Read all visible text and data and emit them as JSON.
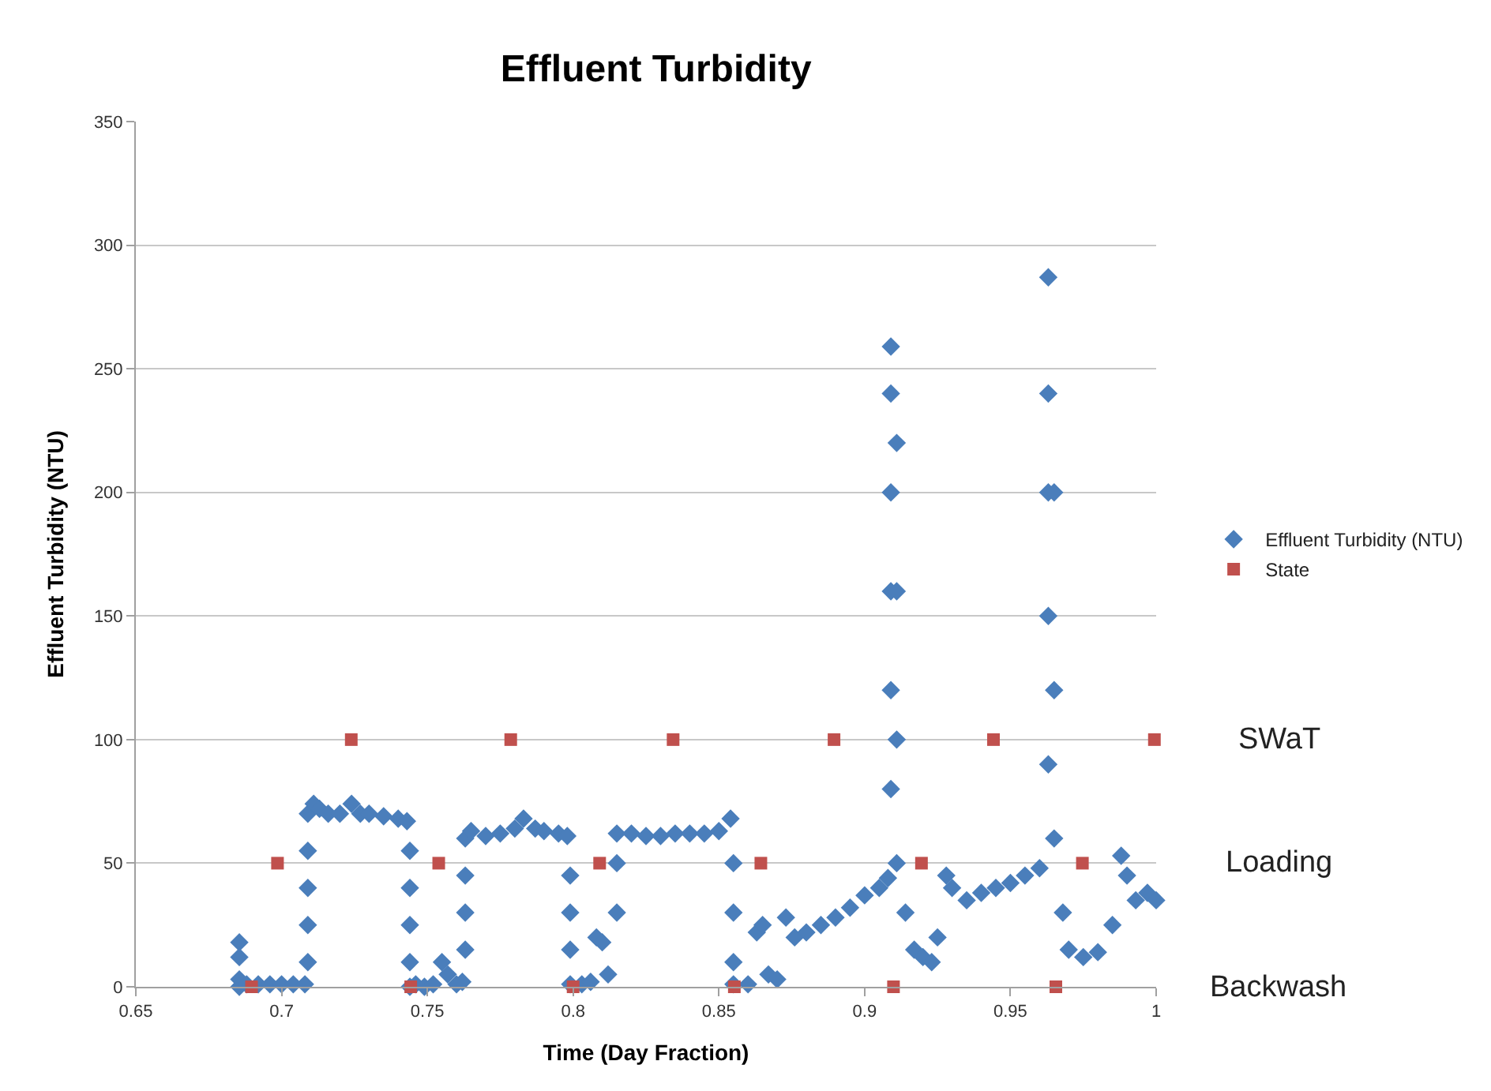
{
  "chart_data": {
    "type": "scatter",
    "title": "Effluent Turbidity",
    "xlabel": "Time (Day Fraction)",
    "ylabel": "Effluent Turbidity (NTU)",
    "xlim": [
      0.65,
      1
    ],
    "xticks": [
      0.65,
      0.7,
      0.75,
      0.8,
      0.85,
      0.9,
      0.95,
      1
    ],
    "ylim": [
      0,
      350
    ],
    "yticks": [
      0,
      50,
      100,
      150,
      200,
      250,
      300,
      350
    ],
    "grid": "y",
    "legend": "right",
    "series": [
      {
        "name": "Effluent Turbidity (NTU)",
        "color": "#4a7ebb",
        "marker": "diamond",
        "x": [
          0.6855,
          0.6855,
          0.6855,
          0.6855,
          0.688,
          0.692,
          0.696,
          0.7,
          0.704,
          0.708,
          0.709,
          0.709,
          0.709,
          0.709,
          0.709,
          0.711,
          0.713,
          0.716,
          0.72,
          0.724,
          0.727,
          0.73,
          0.735,
          0.74,
          0.743,
          0.744,
          0.744,
          0.744,
          0.744,
          0.744,
          0.746,
          0.749,
          0.752,
          0.755,
          0.757,
          0.76,
          0.762,
          0.763,
          0.763,
          0.763,
          0.763,
          0.765,
          0.77,
          0.775,
          0.78,
          0.783,
          0.787,
          0.79,
          0.795,
          0.798,
          0.799,
          0.799,
          0.799,
          0.799,
          0.803,
          0.806,
          0.808,
          0.81,
          0.812,
          0.815,
          0.815,
          0.815,
          0.82,
          0.825,
          0.83,
          0.835,
          0.84,
          0.845,
          0.85,
          0.854,
          0.855,
          0.855,
          0.855,
          0.855,
          0.86,
          0.863,
          0.865,
          0.867,
          0.87,
          0.873,
          0.876,
          0.88,
          0.885,
          0.89,
          0.895,
          0.9,
          0.905,
          0.908,
          0.909,
          0.909,
          0.909,
          0.909,
          0.909,
          0.909,
          0.911,
          0.911,
          0.911,
          0.911,
          0.914,
          0.917,
          0.92,
          0.923,
          0.925,
          0.928,
          0.93,
          0.935,
          0.94,
          0.945,
          0.95,
          0.955,
          0.96,
          0.963,
          0.963,
          0.963,
          0.963,
          0.963,
          0.965,
          0.965,
          0.965,
          0.968,
          0.97,
          0.975,
          0.98,
          0.985,
          0.988,
          0.99,
          0.993,
          0.997,
          1.0
        ],
        "values": [
          18,
          12,
          3,
          0,
          1,
          1,
          1,
          1,
          1,
          1,
          10,
          25,
          40,
          55,
          70,
          74,
          72,
          70,
          70,
          74,
          70,
          70,
          69,
          68,
          67,
          55,
          40,
          25,
          10,
          0,
          1,
          0,
          1,
          10,
          5,
          1,
          2,
          15,
          30,
          45,
          60,
          63,
          61,
          62,
          64,
          68,
          64,
          63,
          62,
          61,
          45,
          30,
          15,
          1,
          1,
          2,
          20,
          18,
          5,
          30,
          50,
          62,
          62,
          61,
          61,
          62,
          62,
          62,
          63,
          68,
          50,
          30,
          10,
          1,
          1,
          22,
          25,
          5,
          3,
          28,
          20,
          22,
          25,
          28,
          32,
          37,
          40,
          44,
          80,
          120,
          160,
          200,
          240,
          259,
          220,
          160,
          100,
          50,
          30,
          15,
          12,
          10,
          20,
          45,
          40,
          35,
          38,
          40,
          42,
          45,
          48,
          90,
          150,
          200,
          240,
          287,
          200,
          120,
          60,
          30,
          15,
          12,
          14,
          25,
          53,
          45,
          35,
          38,
          35
        ]
      },
      {
        "name": "State",
        "color": "#c0504d",
        "marker": "square",
        "x": [
          0.6897,
          0.6986,
          0.7239,
          0.7443,
          0.7539,
          0.7786,
          0.8,
          0.8091,
          0.8343,
          0.8553,
          0.8644,
          0.8895,
          0.9099,
          0.9195,
          0.9442,
          0.9656,
          0.9747,
          0.9994
        ],
        "values": [
          0,
          50,
          100,
          0,
          50,
          100,
          0,
          50,
          100,
          0,
          50,
          100,
          0,
          50,
          100,
          0,
          50,
          100
        ]
      }
    ],
    "annotations": [
      "SWaT",
      "Loading",
      "Backwash"
    ]
  }
}
